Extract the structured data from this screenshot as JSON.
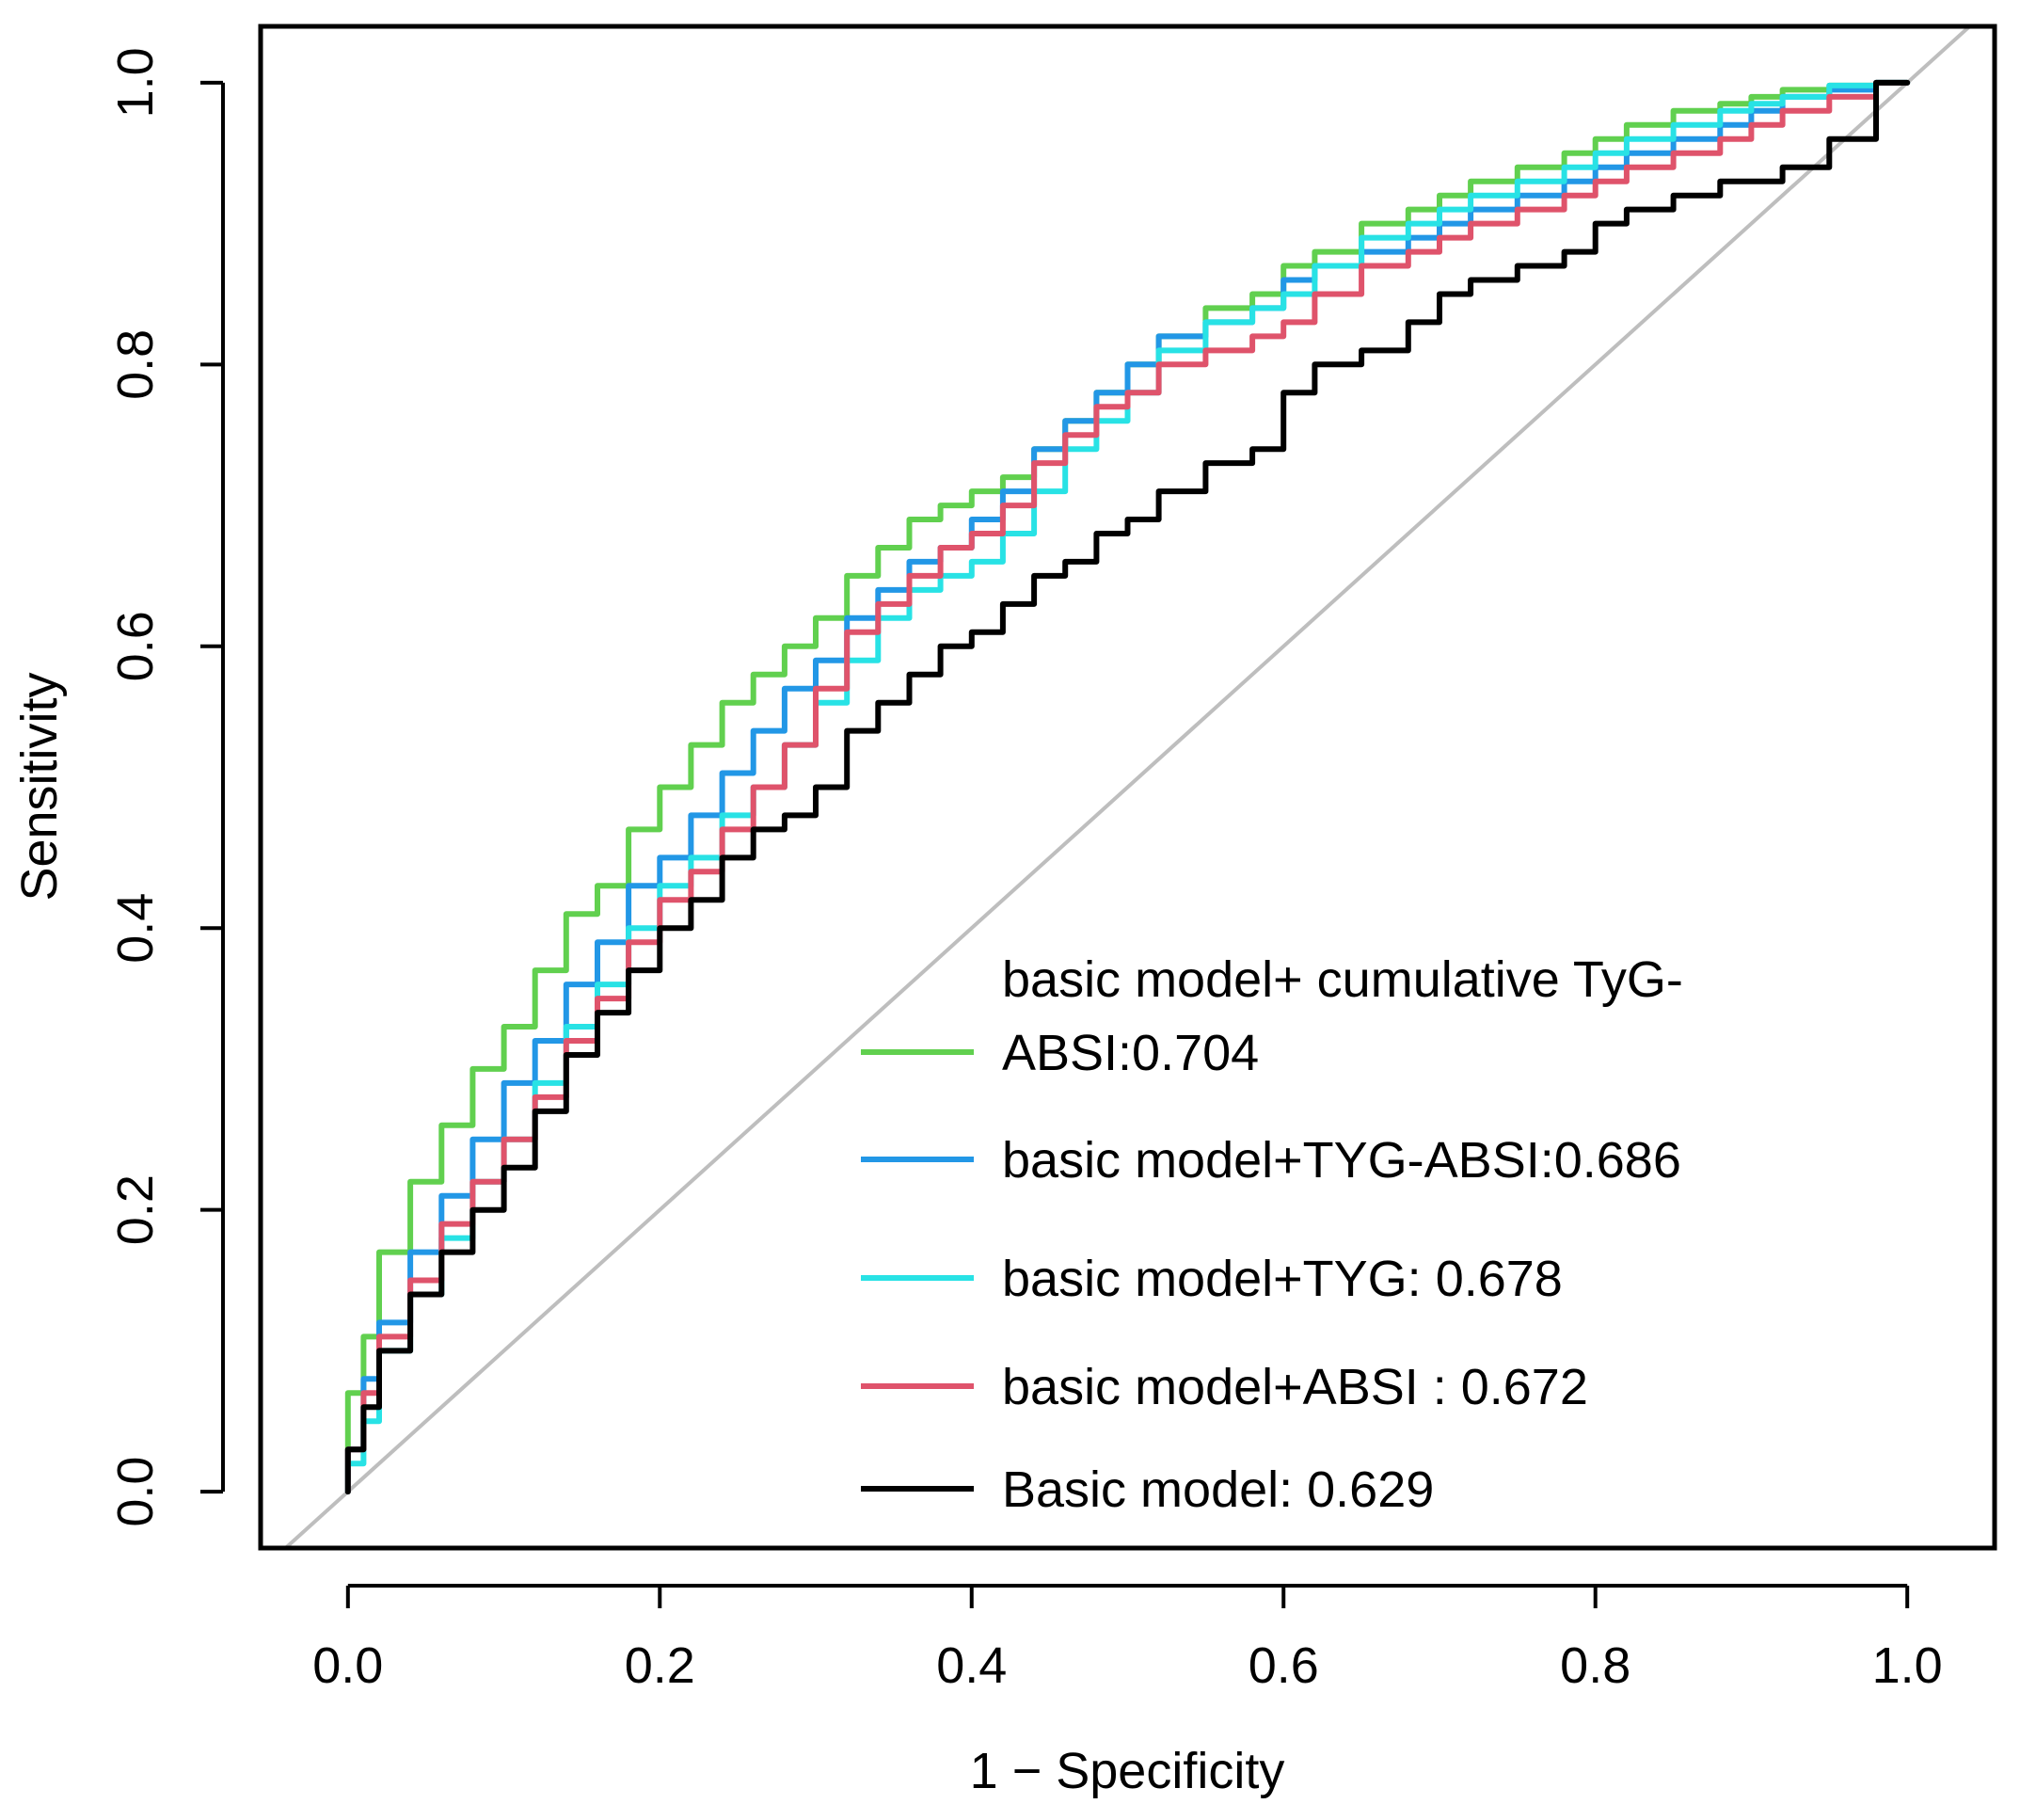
{
  "chart_data": {
    "type": "line",
    "title": "",
    "xlabel": "1 − Specificity",
    "ylabel": "Sensitivity",
    "xlim": [
      -0.056,
      1.056
    ],
    "ylim": [
      -0.04,
      1.04
    ],
    "x_ticks": [
      "0.0",
      "0.2",
      "0.4",
      "0.6",
      "0.8",
      "1.0"
    ],
    "y_ticks": [
      "0.0",
      "0.2",
      "0.4",
      "0.6",
      "0.8",
      "1.0"
    ],
    "grid": false,
    "legend_position": "bottom-right",
    "reference_line": {
      "x": [
        0,
        1
      ],
      "y": [
        0,
        1
      ],
      "color": "#BEBEBE"
    },
    "series": [
      {
        "name": "basic model+ cumulative TyG-ABSI:0.704",
        "legend_lines": [
          "basic model+ cumulative TyG-",
          "ABSI:0.704"
        ],
        "color": "#61D04F",
        "x": [
          0,
          0.01,
          0.02,
          0.04,
          0.06,
          0.08,
          0.1,
          0.12,
          0.14,
          0.16,
          0.18,
          0.2,
          0.22,
          0.24,
          0.26,
          0.28,
          0.3,
          0.32,
          0.34,
          0.36,
          0.38,
          0.4,
          0.42,
          0.44,
          0.46,
          0.48,
          0.5,
          0.52,
          0.55,
          0.58,
          0.6,
          0.62,
          0.65,
          0.68,
          0.7,
          0.72,
          0.75,
          0.78,
          0.8,
          0.82,
          0.85,
          0.88,
          0.9,
          0.92,
          0.95,
          0.98,
          1
        ],
        "y": [
          0,
          0.07,
          0.11,
          0.17,
          0.22,
          0.26,
          0.3,
          0.33,
          0.37,
          0.41,
          0.43,
          0.47,
          0.5,
          0.53,
          0.56,
          0.58,
          0.6,
          0.62,
          0.65,
          0.67,
          0.69,
          0.7,
          0.71,
          0.72,
          0.74,
          0.76,
          0.78,
          0.8,
          0.82,
          0.84,
          0.85,
          0.87,
          0.88,
          0.9,
          0.91,
          0.92,
          0.93,
          0.94,
          0.95,
          0.96,
          0.97,
          0.98,
          0.985,
          0.99,
          0.995,
          0.998,
          1
        ]
      },
      {
        "name": "basic model+TYG-ABSI:0.686",
        "legend_lines": [
          "basic model+TYG-ABSI:0.686"
        ],
        "color": "#2297E6",
        "x": [
          0,
          0.01,
          0.02,
          0.04,
          0.06,
          0.08,
          0.1,
          0.12,
          0.14,
          0.16,
          0.18,
          0.2,
          0.22,
          0.24,
          0.26,
          0.28,
          0.3,
          0.32,
          0.34,
          0.36,
          0.38,
          0.4,
          0.42,
          0.44,
          0.46,
          0.48,
          0.5,
          0.52,
          0.55,
          0.58,
          0.6,
          0.62,
          0.65,
          0.68,
          0.7,
          0.72,
          0.75,
          0.78,
          0.8,
          0.82,
          0.85,
          0.88,
          0.9,
          0.92,
          0.95,
          0.98,
          1
        ],
        "y": [
          0,
          0.03,
          0.08,
          0.12,
          0.17,
          0.21,
          0.25,
          0.29,
          0.32,
          0.36,
          0.39,
          0.43,
          0.45,
          0.48,
          0.51,
          0.54,
          0.57,
          0.59,
          0.62,
          0.64,
          0.66,
          0.67,
          0.69,
          0.71,
          0.74,
          0.76,
          0.78,
          0.8,
          0.82,
          0.83,
          0.84,
          0.86,
          0.87,
          0.88,
          0.89,
          0.9,
          0.91,
          0.92,
          0.93,
          0.94,
          0.95,
          0.96,
          0.97,
          0.98,
          0.99,
          0.995,
          1
        ]
      },
      {
        "name": "basic model+TYG: 0.678",
        "legend_lines": [
          "basic model+TYG: 0.678"
        ],
        "color": "#28E2E5",
        "x": [
          0,
          0.01,
          0.02,
          0.04,
          0.06,
          0.08,
          0.1,
          0.12,
          0.14,
          0.16,
          0.18,
          0.2,
          0.22,
          0.24,
          0.26,
          0.28,
          0.3,
          0.32,
          0.34,
          0.36,
          0.38,
          0.4,
          0.42,
          0.44,
          0.46,
          0.48,
          0.5,
          0.52,
          0.55,
          0.58,
          0.6,
          0.62,
          0.65,
          0.68,
          0.7,
          0.72,
          0.75,
          0.78,
          0.8,
          0.82,
          0.85,
          0.88,
          0.9,
          0.92,
          0.95,
          0.98,
          1
        ],
        "y": [
          0,
          0.02,
          0.05,
          0.1,
          0.14,
          0.18,
          0.22,
          0.25,
          0.29,
          0.33,
          0.36,
          0.4,
          0.43,
          0.45,
          0.48,
          0.5,
          0.53,
          0.56,
          0.59,
          0.62,
          0.64,
          0.65,
          0.66,
          0.68,
          0.71,
          0.74,
          0.76,
          0.78,
          0.81,
          0.83,
          0.84,
          0.85,
          0.87,
          0.89,
          0.9,
          0.91,
          0.92,
          0.93,
          0.94,
          0.95,
          0.96,
          0.97,
          0.98,
          0.985,
          0.99,
          0.998,
          1
        ]
      },
      {
        "name": "basic model+ABSI : 0.672",
        "legend_lines": [
          "basic model+ABSI : 0.672"
        ],
        "color": "#DF536B",
        "x": [
          0,
          0.01,
          0.02,
          0.04,
          0.06,
          0.08,
          0.1,
          0.12,
          0.14,
          0.16,
          0.18,
          0.2,
          0.22,
          0.24,
          0.26,
          0.28,
          0.3,
          0.32,
          0.34,
          0.36,
          0.38,
          0.4,
          0.42,
          0.44,
          0.46,
          0.48,
          0.5,
          0.52,
          0.55,
          0.58,
          0.6,
          0.62,
          0.65,
          0.68,
          0.7,
          0.72,
          0.75,
          0.78,
          0.8,
          0.82,
          0.85,
          0.88,
          0.9,
          0.92,
          0.95,
          0.98,
          1
        ],
        "y": [
          0,
          0.03,
          0.07,
          0.11,
          0.15,
          0.19,
          0.22,
          0.25,
          0.28,
          0.32,
          0.35,
          0.39,
          0.42,
          0.44,
          0.47,
          0.5,
          0.53,
          0.57,
          0.61,
          0.63,
          0.65,
          0.67,
          0.68,
          0.7,
          0.73,
          0.75,
          0.77,
          0.78,
          0.8,
          0.81,
          0.82,
          0.83,
          0.85,
          0.87,
          0.88,
          0.89,
          0.9,
          0.91,
          0.92,
          0.93,
          0.94,
          0.95,
          0.96,
          0.97,
          0.98,
          0.99,
          1
        ]
      },
      {
        "name": "Basic model: 0.629",
        "legend_lines": [
          "Basic model: 0.629"
        ],
        "color": "#000000",
        "x": [
          0,
          0.01,
          0.02,
          0.04,
          0.06,
          0.08,
          0.1,
          0.12,
          0.14,
          0.16,
          0.18,
          0.2,
          0.22,
          0.24,
          0.26,
          0.28,
          0.3,
          0.32,
          0.34,
          0.36,
          0.38,
          0.4,
          0.42,
          0.44,
          0.46,
          0.48,
          0.5,
          0.52,
          0.55,
          0.58,
          0.6,
          0.62,
          0.65,
          0.68,
          0.7,
          0.72,
          0.75,
          0.78,
          0.8,
          0.82,
          0.85,
          0.88,
          0.9,
          0.92,
          0.95,
          0.98,
          1
        ],
        "y": [
          0,
          0.03,
          0.06,
          0.1,
          0.14,
          0.17,
          0.2,
          0.23,
          0.27,
          0.31,
          0.34,
          0.37,
          0.4,
          0.42,
          0.45,
          0.47,
          0.48,
          0.5,
          0.54,
          0.56,
          0.58,
          0.6,
          0.61,
          0.63,
          0.65,
          0.66,
          0.68,
          0.69,
          0.71,
          0.73,
          0.74,
          0.78,
          0.8,
          0.81,
          0.83,
          0.85,
          0.86,
          0.87,
          0.88,
          0.9,
          0.91,
          0.92,
          0.93,
          0.93,
          0.94,
          0.96,
          1
        ]
      }
    ]
  }
}
